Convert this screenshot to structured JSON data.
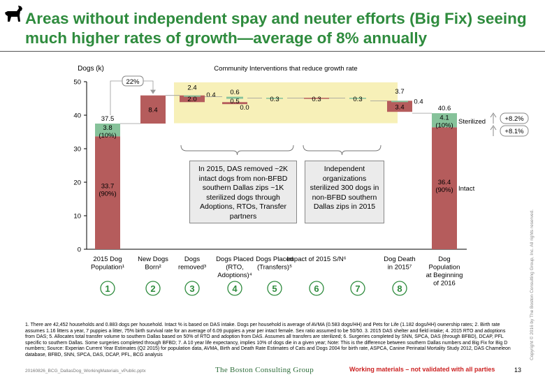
{
  "title": "Areas without independent spay and neuter efforts (Big Fix) seeing much higher rates of growth—average of 8% annually",
  "chart_data": {
    "type": "bar",
    "subtype": "waterfall",
    "ylabel": "Dogs (k)",
    "ylim": [
      0,
      50
    ],
    "yticks": [
      0,
      10,
      20,
      30,
      40,
      50
    ],
    "band_label": "Community Interventions that reduce growth rate",
    "colors": {
      "intact": "#b55c5c",
      "sterilized": "#86c29a",
      "highlight": "#f7f0b8",
      "circle": "#2e8b3d"
    },
    "categories": [
      {
        "label": [
          "2015 Dog",
          "Population¹"
        ],
        "number": "1"
      },
      {
        "label": [
          "New Dogs",
          "Born²"
        ],
        "number": "2"
      },
      {
        "label": [
          "Dogs",
          "removed³"
        ],
        "number": "3"
      },
      {
        "label": [
          "Dogs Placed",
          "(RTO,",
          "Adoptions)⁴"
        ],
        "number": "4"
      },
      {
        "label": [
          "Dogs Placed",
          "(Transfers)⁵"
        ],
        "number": "5"
      },
      {
        "label": [
          "Impact of 2015 S/N⁶"
        ],
        "number": "6"
      },
      {
        "label": [
          ""
        ],
        "number": "7"
      },
      {
        "label": [
          "Dog Death",
          "in 2015⁷"
        ],
        "number": "8"
      },
      {
        "label": [
          "Dog",
          "Population",
          "at Beginning",
          "of 2016"
        ],
        "number": ""
      }
    ],
    "bars": [
      {
        "segments": [
          {
            "from": 0,
            "to": 33.7,
            "kind": "intact"
          },
          {
            "from": 33.7,
            "to": 37.5,
            "kind": "sterilized"
          }
        ],
        "total_label": "37.5",
        "inner_labels": [
          {
            "text": "33.7",
            "sub": "(90%)",
            "y": 18.2
          },
          {
            "text": "3.8",
            "sub": "(10%)",
            "y": 35.6
          }
        ]
      },
      {
        "segments": [
          {
            "from": 37.5,
            "to": 45.9,
            "kind": "intact"
          }
        ],
        "inner_labels": [
          {
            "text": "8.4",
            "y": 41.7
          }
        ]
      },
      {
        "segments": [
          {
            "from": 45.9,
            "to": 43.9,
            "kind": "intact"
          },
          {
            "from": 45.9,
            "to": 45.5,
            "kind": "sterilized"
          }
        ],
        "above": [
          {
            "text": "2.4",
            "y": 47.6
          }
        ],
        "inner_labels": [
          {
            "text": "2.0",
            "y": 44.9
          }
        ],
        "side_labels": [
          {
            "text": "0.4",
            "y": 46.0
          }
        ]
      },
      {
        "segments": [
          {
            "from": 43.9,
            "to": 43.3,
            "kind": "intact"
          },
          {
            "from": 45.5,
            "to": 44.9,
            "kind": "sterilized"
          }
        ],
        "above": [
          {
            "text": "0.6",
            "y": 46.3
          }
        ],
        "inner_labels": [
          {
            "text": "0.5",
            "y": 44.3
          }
        ],
        "below": [
          {
            "text": "0.0",
            "y": 41.7
          }
        ]
      },
      {
        "segments": [
          {
            "from": 45.2,
            "to": 44.9,
            "kind": "sterilized"
          }
        ],
        "inner_labels": [
          {
            "text": "0.3",
            "y": 44.9
          }
        ]
      },
      {
        "segments": [
          {
            "from": 45.2,
            "to": 44.9,
            "kind": "intact"
          }
        ],
        "inner_labels": [
          {
            "text": "0.3",
            "y": 44.9
          }
        ]
      },
      {
        "segments": [
          {
            "from": 45.2,
            "to": 44.9,
            "kind": "sterilized"
          }
        ],
        "inner_labels": [
          {
            "text": "0.3",
            "y": 44.9
          }
        ]
      },
      {
        "segments": [
          {
            "from": 44.3,
            "to": 41.0,
            "kind": "intact"
          },
          {
            "from": 44.3,
            "to": 43.9,
            "kind": "sterilized"
          }
        ],
        "above": [
          {
            "text": "3.7",
            "y": 46.5
          }
        ],
        "inner_labels": [
          {
            "text": "3.4",
            "y": 42.5
          }
        ],
        "side_labels": [
          {
            "text": "0.4",
            "y": 44.1
          }
        ]
      },
      {
        "segments": [
          {
            "from": 0,
            "to": 36.4,
            "kind": "intact"
          },
          {
            "from": 36.4,
            "to": 40.6,
            "kind": "sterilized"
          }
        ],
        "total_label": "40.6",
        "inner_labels": [
          {
            "text": "36.4",
            "sub": "(90%)",
            "y": 19.4
          },
          {
            "text": "4.1",
            "sub": "(10%)",
            "y": 38.6
          }
        ]
      }
    ],
    "arrow_label": "22%",
    "right_labels": {
      "sterilized": "Sterilized",
      "intact": "Intact"
    },
    "growth_badges": [
      "+8.2%",
      "+8.1%"
    ]
  },
  "callouts": [
    {
      "text": "In 2015, DAS removed ~2K intact dogs from non-BFBD southern Dallas zips ~1K sterilized dogs through Adoptions, RTOs, Transfer partners"
    },
    {
      "text": "Independent organizations sterilized 300 dogs in non-BFBD southern Dallas zips in 2015"
    }
  ],
  "footnote": "1. There are 42,452 households and 0.883 dogs per household. Intact % is based on DAS intake. Dogs per household is average of AVMA (0.583 dogs/HH) and Pets for Life (1.182 dogs/HH) ownership rates; 2. Birth rate assumes 1.16 litters a year, 7 puppies a litter, 75% birth survival rate for an average of 6.09 puppies a year per intact female. Sex ratio assumed to be 50/50. 3. 2015 DAS shelter and field intake; 4. 2015 RTO and adoptions from DAS; 5. Allocates total transfer volume to southern Dallas based on 50% of RTO and adoption from DAS. Assumes all transfers are sterilized; 6. Surgeries completed by SNN, SPCA, DAS (through BFBD), DCAP, PFL specific to southern Dallas. Some surgeries completed through BFBD; 7. A 10 year life expectancy, implies 10% of dogs die in a given year; Note: This is the difference between southern Dallas numbers and Big Fix for Big D numbers; Source: Experian Current Year Estimates (Q2 2015) for population data, AVMA, Birth and Death Rate Estimates of Cats and Dogs 2004 for birth rate, ASPCA, Canine Perinatal Mortality Study 2012, DAS Chameleon database, BFBD, SNN, SPCA, DAS, DCAP, PFL, BCG analysis",
  "file_name": "20160826_BCG_DallasDog_WorkingMaterials_vPublic.pptx",
  "brand": "The Boston Consulting Group",
  "warning": "Working materials – not validated with all parties",
  "page_number": "13",
  "copyright": "Copyright © 2016 by The Boston Consulting Group, Inc. All rights reserved."
}
